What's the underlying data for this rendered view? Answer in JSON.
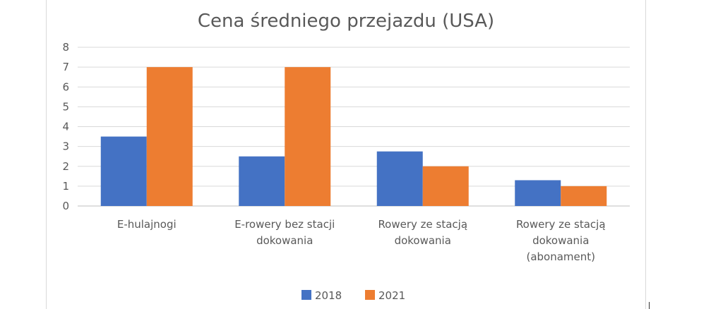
{
  "chart_data": {
    "type": "bar",
    "title": "Cena średniego przejazdu  (USA)",
    "categories": [
      [
        "E-hulajnogi"
      ],
      [
        "E-rowery bez stacji",
        "dokowania"
      ],
      [
        "Rowery ze stacją",
        "dokowania"
      ],
      [
        "Rowery ze stacją",
        "dokowania",
        "(abonament)"
      ]
    ],
    "series": [
      {
        "name": "2018",
        "color": "#4472C4",
        "values": [
          3.5,
          2.5,
          2.75,
          1.3
        ]
      },
      {
        "name": "2021",
        "color": "#ED7D31",
        "values": [
          7,
          7,
          2,
          1
        ]
      }
    ],
    "ylim": [
      0,
      8
    ],
    "yticks": [
      0,
      1,
      2,
      3,
      4,
      5,
      6,
      7,
      8
    ],
    "grid": true,
    "legend": "bottom"
  }
}
